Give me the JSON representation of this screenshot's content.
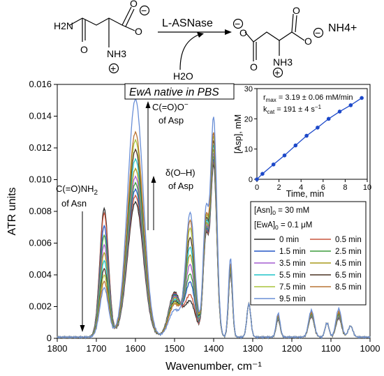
{
  "scheme": {
    "enzyme": "L-ASNase",
    "water": "H2O",
    "product_ion": "NH4+",
    "asn_amine": "H2N",
    "asn_ammonium": "NH3",
    "minus": "−",
    "plus": "+"
  },
  "chart_data": [
    {
      "type": "line",
      "title": "EwA native in PBS",
      "xlabel": "Wavenumber, cm⁻¹",
      "ylabel": "ATR units",
      "xlim": [
        1800,
        1000
      ],
      "ylim": [
        0,
        0.016
      ],
      "x_reversed": true,
      "xticks": [
        1800,
        1700,
        1600,
        1500,
        1400,
        1300,
        1200,
        1100,
        1000
      ],
      "yticks": [
        0,
        0.002,
        0.004,
        0.006,
        0.008,
        0.01,
        0.012,
        0.014,
        0.016
      ],
      "xtick_labels": [
        "1800",
        "1700",
        "1600",
        "1500",
        "1400",
        "1300",
        "1200",
        "1100",
        "1000"
      ],
      "ytick_labels": [
        "0",
        "0.002",
        "0.004",
        "0.006",
        "0.008",
        "0.010",
        "0.012",
        "0.014",
        "0.016"
      ],
      "grid": false,
      "annotations": [
        {
          "line1": "C(=O)NH",
          "sub1": "2",
          "line2": "of Asn"
        },
        {
          "line1": "C(=O)O",
          "sup1": "−",
          "line2": "of Asp"
        },
        {
          "line1": "δ(O–H)",
          "line2": "of Asp"
        }
      ],
      "legend": {
        "placement": "right",
        "header1_pre": "[Asn]",
        "header1_sub": "0",
        "header1_post": " = 30 mM",
        "header2_pre": "[EwA]",
        "header2_sub": "0",
        "header2_post": " = 0.1 μM"
      },
      "series": [
        {
          "name": "0 min",
          "color": "#2b2b2b",
          "peak1680": 0.0081,
          "peak1600": 0.0085,
          "peak1460": 0.0
        },
        {
          "name": "0.5 min",
          "color": "#c8553d",
          "peak1680": 0.0078,
          "peak1600": 0.0089,
          "peak1460": 0.0004
        },
        {
          "name": "1.5 min",
          "color": "#2457c5",
          "peak1680": 0.007,
          "peak1600": 0.0093,
          "peak1460": 0.0012
        },
        {
          "name": "2.5 min",
          "color": "#3c9c3c",
          "peak1680": 0.0064,
          "peak1600": 0.0097,
          "peak1460": 0.0017
        },
        {
          "name": "3.5 min",
          "color": "#a45bd0",
          "peak1680": 0.0058,
          "peak1600": 0.0101,
          "peak1460": 0.0023
        },
        {
          "name": "4.5 min",
          "color": "#a89a1a",
          "peak1680": 0.0053,
          "peak1600": 0.0106,
          "peak1460": 0.0029
        },
        {
          "name": "5.5 min",
          "color": "#1fc4c8",
          "peak1680": 0.0048,
          "peak1600": 0.0112,
          "peak1460": 0.0034
        },
        {
          "name": "6.5 min",
          "color": "#4a3222",
          "peak1680": 0.0043,
          "peak1600": 0.0118,
          "peak1460": 0.004
        },
        {
          "name": "7.5 min",
          "color": "#a9c43a",
          "peak1680": 0.0039,
          "peak1600": 0.0124,
          "peak1460": 0.0046
        },
        {
          "name": "8.5 min",
          "color": "#b87333",
          "peak1680": 0.0035,
          "peak1600": 0.0129,
          "peak1460": 0.0051
        },
        {
          "name": "9.5 min",
          "color": "#6a8fd6",
          "peak1680": 0.0031,
          "peak1600": 0.015,
          "peak1460": 0.0056
        }
      ]
    },
    {
      "type": "scatter",
      "xlabel": "Time, min",
      "ylabel": "[Asp], mM",
      "xlim": [
        0,
        10
      ],
      "ylim": [
        0,
        30
      ],
      "xticks": [
        0,
        2,
        4,
        6,
        8,
        10
      ],
      "yticks": [
        0,
        10,
        20,
        30
      ],
      "xtick_labels": [
        "0",
        "2",
        "4",
        "6",
        "8",
        "10"
      ],
      "ytick_labels": [
        "0",
        "10",
        "20",
        "30"
      ],
      "annotations": [
        {
          "pre": "r",
          "sub": "max",
          "post": " = 3.19 ± 0.06 mM/min"
        },
        {
          "pre": "k",
          "sub": "cat",
          "post": " = 191 ± 4 s",
          "sup": "−1"
        }
      ],
      "color": "#1d49c9",
      "x": [
        0,
        0.5,
        1.5,
        2.5,
        3.5,
        4.5,
        5.5,
        6.5,
        7.5,
        8.5,
        9.5
      ],
      "y": [
        0,
        1.8,
        4.9,
        7.9,
        11.2,
        14.4,
        17.1,
        20.0,
        22.4,
        24.5,
        26.9
      ]
    }
  ]
}
